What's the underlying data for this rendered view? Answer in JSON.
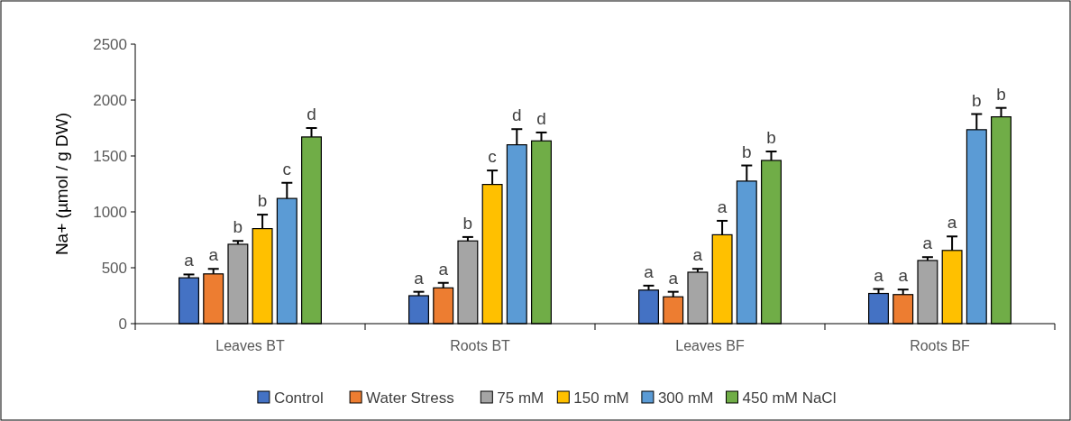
{
  "chart_data": {
    "type": "bar",
    "ylabel": "Na+ (µmol / g DW)",
    "categories": [
      "Leaves BT",
      "Roots BT",
      "Leaves BF",
      "Roots BF"
    ],
    "ylim": [
      0,
      2500
    ],
    "yticks": [
      0,
      500,
      1000,
      1500,
      2000,
      2500
    ],
    "grid": false,
    "legend": "bottom",
    "series": [
      {
        "name": "Control",
        "color": "#4472c4",
        "values": [
          410,
          250,
          300,
          270
        ],
        "errors": [
          30,
          35,
          40,
          40
        ],
        "value_labels": [
          "a",
          "a",
          "a",
          "a"
        ]
      },
      {
        "name": "Water Stress",
        "color": "#ed7d31",
        "values": [
          445,
          320,
          240,
          260
        ],
        "errors": [
          45,
          45,
          45,
          45
        ],
        "value_labels": [
          "a",
          "a",
          "a",
          "a"
        ]
      },
      {
        "name": "75 mM",
        "color": "#a5a5a5",
        "values": [
          710,
          740,
          460,
          565
        ],
        "errors": [
          30,
          35,
          30,
          30
        ],
        "value_labels": [
          "b",
          "b",
          "a",
          "a"
        ]
      },
      {
        "name": "150 mM",
        "color": "#ffc000",
        "values": [
          850,
          1245,
          795,
          655
        ],
        "errors": [
          125,
          125,
          125,
          125
        ],
        "value_labels": [
          "b",
          "c",
          "a",
          "a"
        ]
      },
      {
        "name": "300 mM",
        "color": "#5b9bd5",
        "values": [
          1120,
          1600,
          1275,
          1735
        ],
        "errors": [
          140,
          140,
          140,
          140
        ],
        "value_labels": [
          "c",
          "d",
          "b",
          "b"
        ]
      },
      {
        "name": "450 mM NaCl",
        "color": "#70ad47",
        "values": [
          1670,
          1635,
          1460,
          1850
        ],
        "errors": [
          80,
          75,
          80,
          80
        ],
        "value_labels": [
          "d",
          "d",
          "b",
          "b"
        ]
      }
    ]
  }
}
